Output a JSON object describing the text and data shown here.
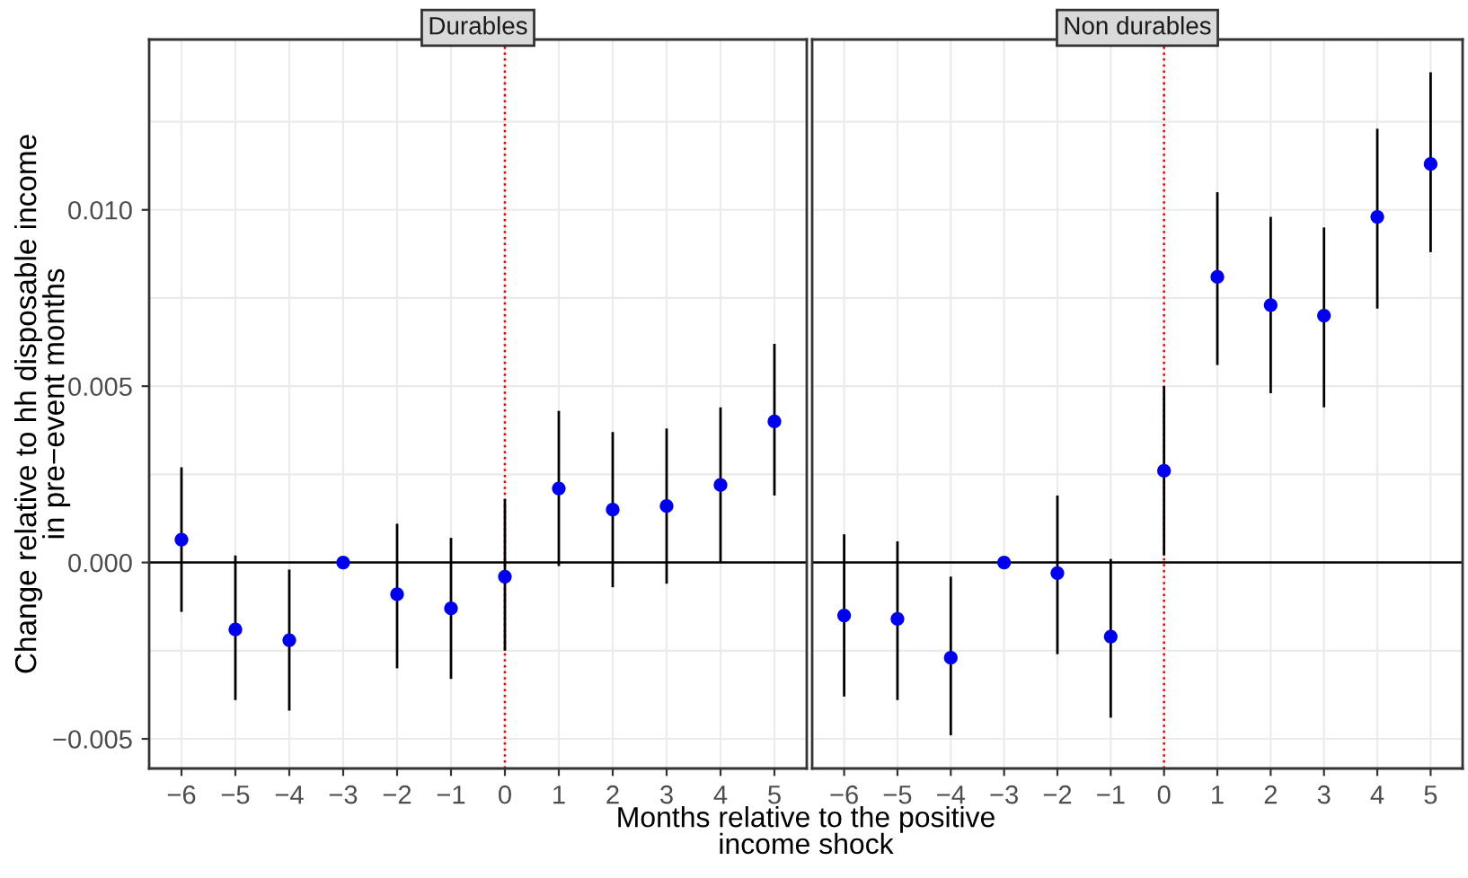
{
  "chart_data": [
    {
      "type": "scatter",
      "title": "Durables",
      "xlabel": "Months relative to the positive\nincome shock",
      "ylabel": "Change relative to hh disposable income\nin pre−event months",
      "x": [
        -6,
        -5,
        -4,
        -3,
        -2,
        -1,
        0,
        1,
        2,
        3,
        4,
        5
      ],
      "series": [
        {
          "color": "#0000ee",
          "values": [
            0.00065,
            -0.0019,
            -0.0022,
            0.0,
            -0.0009,
            -0.0013,
            -0.0004,
            0.0021,
            0.0015,
            0.0016,
            0.0022,
            0.004
          ],
          "errors": [
            [
              -0.0014,
              0.0027
            ],
            [
              -0.0039,
              0.0002
            ],
            [
              -0.0042,
              -0.0002
            ],
            null,
            [
              -0.003,
              0.0011
            ],
            [
              -0.0033,
              0.0007
            ],
            [
              -0.0025,
              0.0018
            ],
            [
              -0.0001,
              0.0043
            ],
            [
              -0.0007,
              0.0037
            ],
            [
              -0.0006,
              0.0038
            ],
            [
              0.0,
              0.0044
            ],
            [
              0.0019,
              0.0062
            ]
          ]
        }
      ],
      "xlim": [
        -6.6,
        5.6
      ],
      "xticks": [
        -6,
        -5,
        -4,
        -3,
        -2,
        -1,
        0,
        1,
        2,
        3,
        4,
        5
      ],
      "ylim": [
        -0.00584,
        0.01483
      ],
      "yticks": [
        {
          "value": -0.005,
          "label": "−0.005"
        },
        {
          "value": -0.0025,
          "label": null
        },
        {
          "value": 0,
          "label": "0.000"
        },
        {
          "value": 0.0025,
          "label": null
        },
        {
          "value": 0.005,
          "label": "0.005"
        },
        {
          "value": 0.0075,
          "label": null
        },
        {
          "value": 0.01,
          "label": "0.010"
        },
        {
          "value": 0.0125,
          "label": null
        }
      ],
      "ref_lines": [
        {
          "axis": "y",
          "value": 0,
          "color": "#000000",
          "line_style": "solid"
        },
        {
          "axis": "x",
          "value": 0,
          "color": "#ee0000",
          "line_style": "dotted"
        }
      ],
      "grid": true,
      "marker": "circle"
    },
    {
      "type": "scatter",
      "title": "Non durables",
      "x": [
        -6,
        -5,
        -4,
        -3,
        -2,
        -1,
        0,
        1,
        2,
        3,
        4,
        5
      ],
      "series": [
        {
          "color": "#0000ee",
          "values": [
            -0.0015,
            -0.0016,
            -0.0027,
            0.0,
            -0.0003,
            -0.0021,
            0.0026,
            0.0081,
            0.0073,
            0.007,
            0.0098,
            0.0113
          ],
          "errors": [
            [
              -0.0038,
              0.0008
            ],
            [
              -0.0039,
              0.0006
            ],
            [
              -0.0049,
              -0.0004
            ],
            null,
            [
              -0.0026,
              0.0019
            ],
            [
              -0.0044,
              0.0001
            ],
            [
              0.0002,
              0.005
            ],
            [
              0.0056,
              0.0105
            ],
            [
              0.0048,
              0.0098
            ],
            [
              0.0044,
              0.0095
            ],
            [
              0.0072,
              0.0123
            ],
            [
              0.0088,
              0.0139
            ]
          ]
        }
      ],
      "xlim": [
        -6.6,
        5.6
      ],
      "xticks": [
        -6,
        -5,
        -4,
        -3,
        -2,
        -1,
        0,
        1,
        2,
        3,
        4,
        5
      ],
      "ylim": [
        -0.00584,
        0.01483
      ],
      "yticks": [
        {
          "value": -0.005,
          "label": null
        },
        {
          "value": -0.0025,
          "label": null
        },
        {
          "value": 0,
          "label": null
        },
        {
          "value": 0.0025,
          "label": null
        },
        {
          "value": 0.005,
          "label": null
        },
        {
          "value": 0.0075,
          "label": null
        },
        {
          "value": 0.01,
          "label": null
        },
        {
          "value": 0.0125,
          "label": null
        }
      ],
      "tick_labels": "x",
      "ref_lines": [
        {
          "axis": "y",
          "value": 0,
          "color": "#000000",
          "line_style": "solid"
        },
        {
          "axis": "x",
          "value": 0,
          "color": "#ee0000",
          "line_style": "dotted"
        }
      ],
      "grid": true,
      "marker": "circle"
    }
  ]
}
